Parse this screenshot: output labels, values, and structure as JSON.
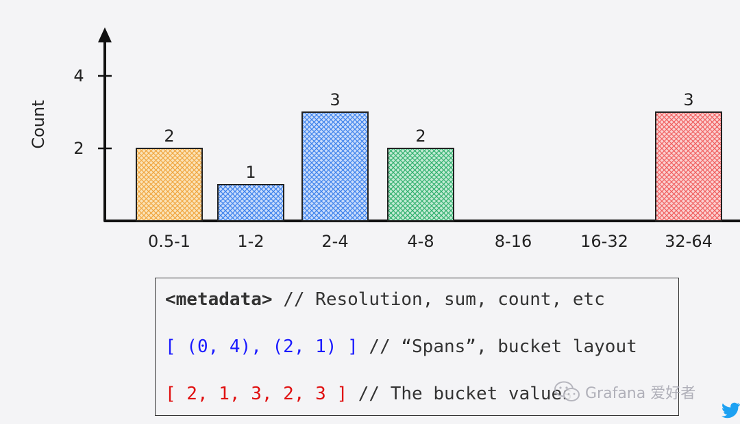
{
  "chart_data": {
    "type": "bar",
    "categories": [
      "0.5-1",
      "1-2",
      "2-4",
      "4-8",
      "8-16",
      "16-32",
      "32-64"
    ],
    "values": [
      2,
      1,
      3,
      2,
      0,
      0,
      3
    ],
    "data_labels": [
      "2",
      "1",
      "3",
      "2",
      "",
      "",
      "3"
    ],
    "colors": [
      "#f7c26b",
      "#5b9cf0",
      "#5b9cf0",
      "#4cc28a",
      "",
      "",
      "#f77f7f"
    ],
    "ylabel": "Count",
    "yticks": [
      2,
      4
    ],
    "ylim": [
      0,
      5.6
    ],
    "grid": false
  },
  "code": {
    "line1_tag": "<metadata>",
    "line1_comment": " // Resolution, sum, count, etc",
    "line2_code": "[ (0, 4), (2, 1) ]",
    "line2_comment": " // “Spans”, bucket layout",
    "line3_code": "[ 2, 1, 3, 2, 3 ]",
    "line3_comment": " // The bucket values"
  },
  "watermark": {
    "text": "Grafana 爱好者",
    "icon": "wechat-icon"
  },
  "corner_icon": "twitter-bird-icon"
}
